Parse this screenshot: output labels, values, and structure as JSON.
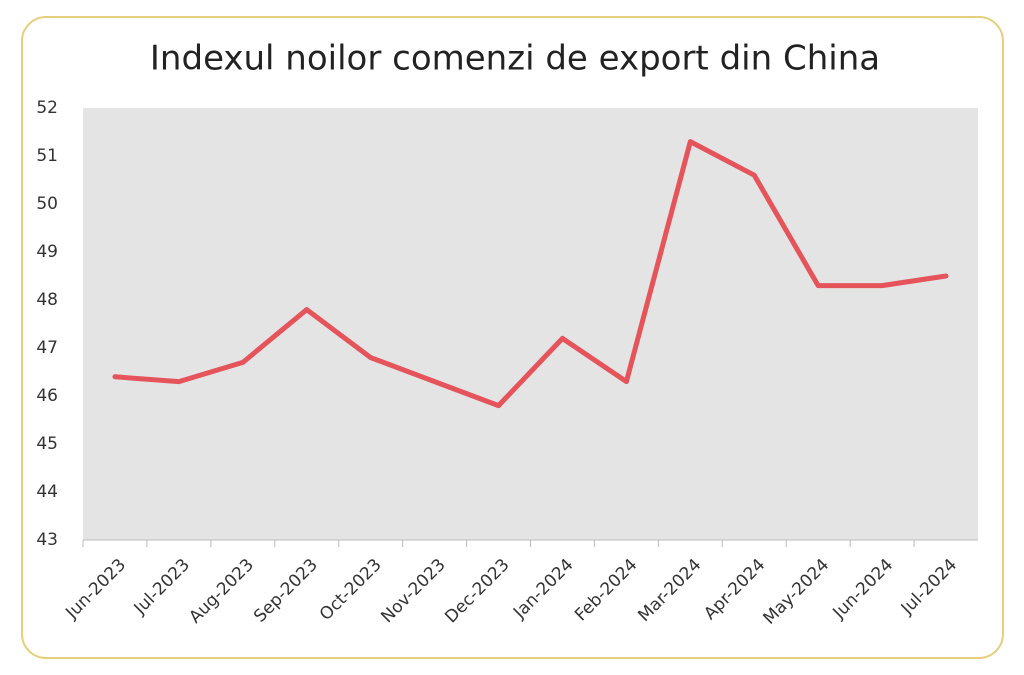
{
  "chart_data": {
    "type": "line",
    "title": "Indexul noilor comenzi de export din China",
    "categories": [
      "Jun-2023",
      "Jul-2023",
      "Aug-2023",
      "Sep-2023",
      "Oct-2023",
      "Nov-2023",
      "Dec-2023",
      "Jan-2024",
      "Feb-2024",
      "Mar-2024",
      "Apr-2024",
      "May-2024",
      "Jun-2024",
      "Jul-2024"
    ],
    "values": [
      46.4,
      46.3,
      46.7,
      47.8,
      46.8,
      46.3,
      45.8,
      47.2,
      46.3,
      51.3,
      50.6,
      48.3,
      48.3,
      48.5
    ],
    "color": "#e5535b",
    "ylim": [
      43,
      52
    ],
    "yticks": [
      43,
      44,
      45,
      46,
      47,
      48,
      49,
      50,
      51,
      52
    ],
    "grid": false
  }
}
